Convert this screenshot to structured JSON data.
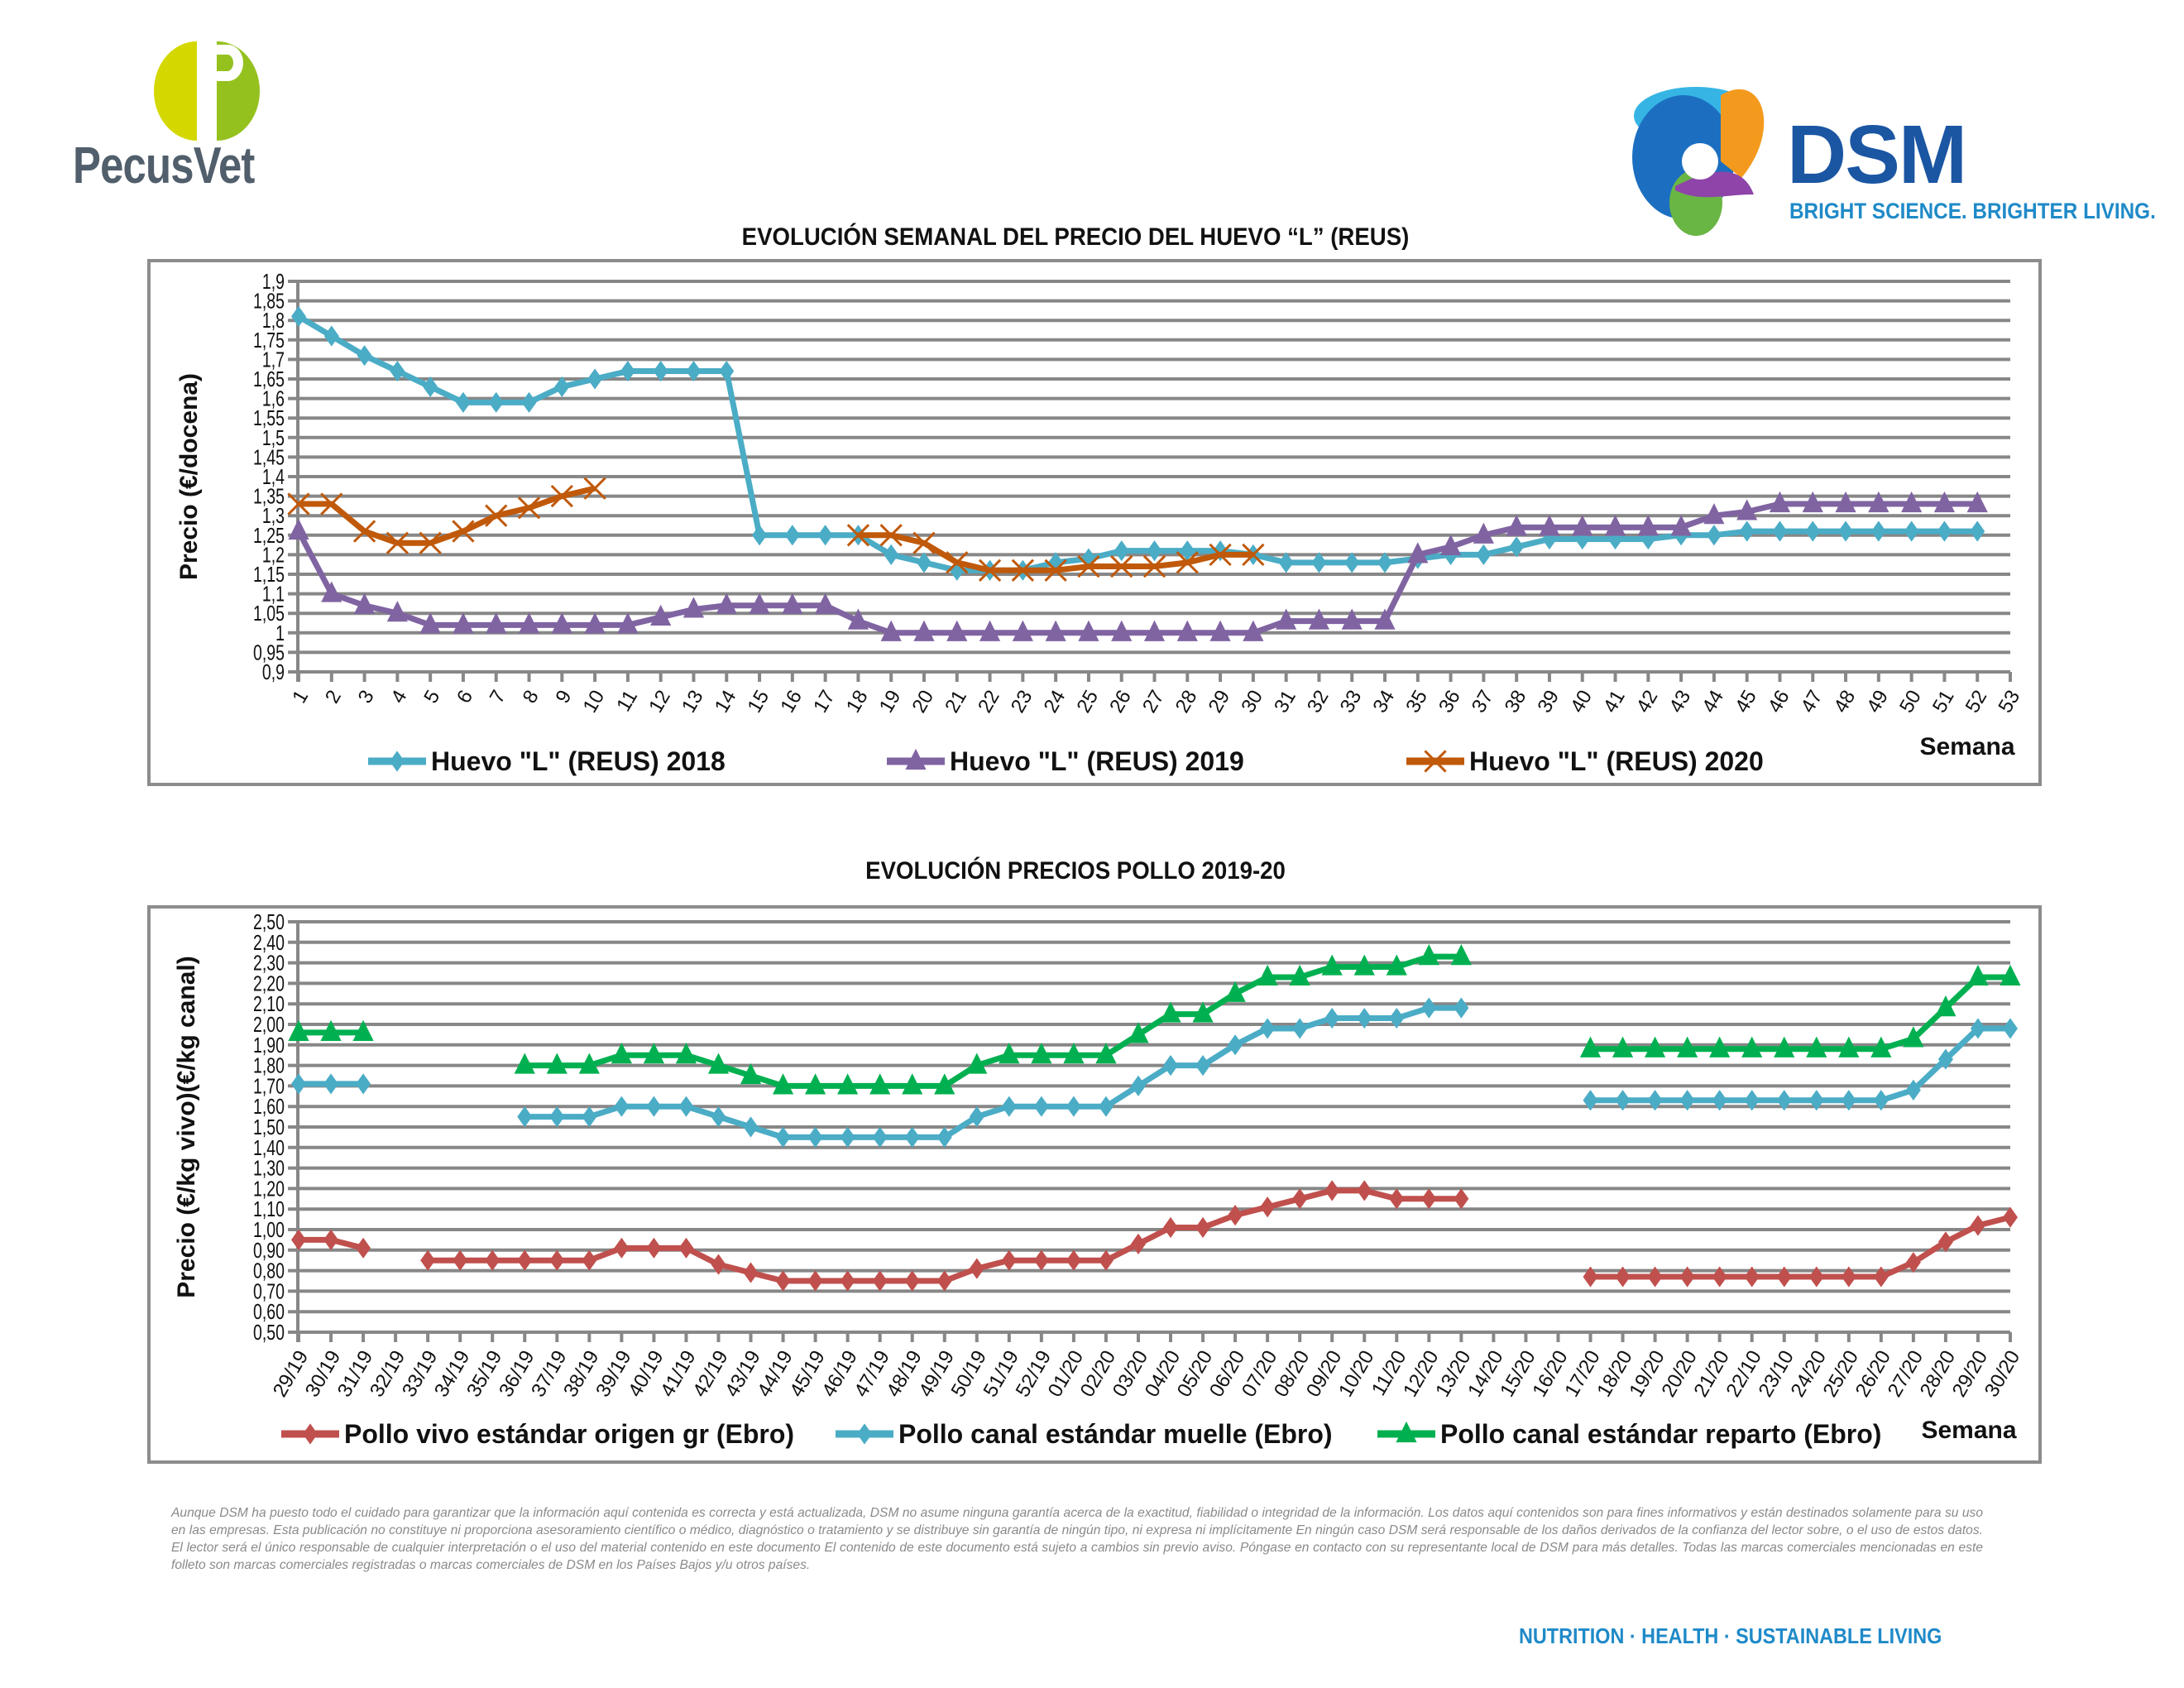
{
  "header": {
    "left_brand": "PecusVet",
    "right_brand": "DSM",
    "right_tagline": "BRIGHT SCIENCE. BRIGHTER LIVING.",
    "brand_colors": {
      "pecus_text": "#515e6b",
      "pecus_left": "#d4d800",
      "pecus_right": "#95c11f",
      "dsm_blue": "#1b56a3",
      "dsm_light": "#1f8ac8"
    }
  },
  "chart_data": [
    {
      "type": "line",
      "title": "EVOLUCIÓN SEMANAL DEL PRECIO DEL HUEVO “L” (REUS)",
      "xlabel": "Semana",
      "ylabel": "Precio (€/docena)",
      "ylim": [
        0.9,
        1.9
      ],
      "ystep": 0.05,
      "yticks": [
        "0,9",
        "0,95",
        "1",
        "1,05",
        "1,1",
        "1,15",
        "1,2",
        "1,25",
        "1,3",
        "1,35",
        "1,4",
        "1,45",
        "1,5",
        "1,55",
        "1,6",
        "1,65",
        "1,7",
        "1,75",
        "1,8",
        "1,85",
        "1,9"
      ],
      "grid": true,
      "legend_position": "bottom",
      "categories": [
        "1",
        "2",
        "3",
        "4",
        "5",
        "6",
        "7",
        "8",
        "9",
        "10",
        "11",
        "12",
        "13",
        "14",
        "15",
        "16",
        "17",
        "18",
        "19",
        "20",
        "21",
        "22",
        "23",
        "24",
        "25",
        "26",
        "27",
        "28",
        "29",
        "30",
        "31",
        "32",
        "33",
        "34",
        "35",
        "36",
        "37",
        "38",
        "39",
        "40",
        "41",
        "42",
        "43",
        "44",
        "45",
        "46",
        "47",
        "48",
        "49",
        "50",
        "51",
        "52",
        "53"
      ],
      "series": [
        {
          "name": "Huevo \"L\" (REUS) 2018",
          "color": "#4bacc6",
          "marker": "diamond",
          "values": [
            1.81,
            1.76,
            1.71,
            1.67,
            1.63,
            1.59,
            1.59,
            1.59,
            1.63,
            1.65,
            1.67,
            1.67,
            1.67,
            1.67,
            1.25,
            1.25,
            1.25,
            1.25,
            1.2,
            1.18,
            1.16,
            1.16,
            1.16,
            1.18,
            1.19,
            1.21,
            1.21,
            1.21,
            1.21,
            1.2,
            1.18,
            1.18,
            1.18,
            1.18,
            1.19,
            1.2,
            1.2,
            1.22,
            1.24,
            1.24,
            1.24,
            1.24,
            1.25,
            1.25,
            1.26,
            1.26,
            1.26,
            1.26,
            1.26,
            1.26,
            1.26,
            1.26,
            null
          ]
        },
        {
          "name": "Huevo \"L\" (REUS) 2019",
          "color": "#8064a2",
          "marker": "triangle",
          "values": [
            1.26,
            1.1,
            1.07,
            1.05,
            1.02,
            1.02,
            1.02,
            1.02,
            1.02,
            1.02,
            1.02,
            1.04,
            1.06,
            1.07,
            1.07,
            1.07,
            1.07,
            1.03,
            1.0,
            1.0,
            1.0,
            1.0,
            1.0,
            1.0,
            1.0,
            1.0,
            1.0,
            1.0,
            1.0,
            1.0,
            1.03,
            1.03,
            1.03,
            1.03,
            1.2,
            1.22,
            1.25,
            1.27,
            1.27,
            1.27,
            1.27,
            1.27,
            1.27,
            1.3,
            1.31,
            1.33,
            1.33,
            1.33,
            1.33,
            1.33,
            1.33,
            1.33,
            null
          ]
        },
        {
          "name": "Huevo \"L\" (REUS) 2020",
          "color": "#c0590a",
          "marker": "x",
          "values": [
            1.33,
            1.33,
            1.26,
            1.23,
            1.23,
            1.26,
            1.3,
            1.32,
            1.35,
            1.37,
            null,
            null,
            null,
            null,
            null,
            null,
            null,
            1.25,
            1.25,
            1.23,
            1.18,
            1.16,
            1.16,
            1.16,
            1.17,
            1.17,
            1.17,
            1.18,
            1.2,
            1.2,
            null,
            null,
            null,
            null,
            null,
            null,
            null,
            null,
            null,
            null,
            null,
            null,
            null,
            null,
            null,
            null,
            null,
            null,
            null,
            null,
            null,
            null,
            null
          ]
        }
      ]
    },
    {
      "type": "line",
      "title": "EVOLUCIÓN PRECIOS POLLO 2019-20",
      "xlabel": "Semana",
      "ylabel": "Precio (€/kg vivo)(€/kg canal)",
      "ylim": [
        0.5,
        2.5
      ],
      "ystep": 0.1,
      "yticks": [
        "0,50",
        "0,60",
        "0,70",
        "0,80",
        "0,90",
        "1,00",
        "1,10",
        "1,20",
        "1,30",
        "1,40",
        "1,50",
        "1,60",
        "1,70",
        "1,80",
        "1,90",
        "2,00",
        "2,10",
        "2,20",
        "2,30",
        "2,40",
        "2,50"
      ],
      "grid": true,
      "legend_position": "bottom",
      "categories": [
        "29/19",
        "30/19",
        "31/19",
        "32/19",
        "33/19",
        "34/19",
        "35/19",
        "36/19",
        "37/19",
        "38/19",
        "39/19",
        "40/19",
        "41/19",
        "42/19",
        "43/19",
        "44/19",
        "45/19",
        "46/19",
        "47/19",
        "48/19",
        "49/19",
        "50/19",
        "51/19",
        "52/19",
        "01/20",
        "02/20",
        "03/20",
        "04/20",
        "05/20",
        "06/20",
        "07/20",
        "08/20",
        "09/20",
        "10/20",
        "11/20",
        "12/20",
        "13/20",
        "14/20",
        "15/20",
        "16/20",
        "17/20",
        "18/20",
        "19/20",
        "20/20",
        "21/20",
        "22/10",
        "23/10",
        "24/20",
        "25/20",
        "26/20",
        "27/20",
        "28/20",
        "29/20",
        "30/20"
      ],
      "series": [
        {
          "name": "Pollo vivo estándar origen gr (Ebro)",
          "color": "#c0504d",
          "marker": "diamond",
          "values": [
            0.95,
            0.95,
            0.91,
            null,
            0.85,
            0.85,
            0.85,
            0.85,
            0.85,
            0.85,
            0.91,
            0.91,
            0.91,
            0.83,
            0.79,
            0.75,
            0.75,
            0.75,
            0.75,
            0.75,
            0.75,
            0.81,
            0.85,
            0.85,
            0.85,
            0.85,
            0.93,
            1.01,
            1.01,
            1.07,
            1.11,
            1.15,
            1.19,
            1.19,
            1.15,
            1.15,
            1.15,
            null,
            null,
            null,
            0.77,
            0.77,
            0.77,
            0.77,
            0.77,
            0.77,
            0.77,
            0.77,
            0.77,
            0.77,
            0.84,
            0.94,
            1.02,
            1.06
          ]
        },
        {
          "name": "Pollo canal estándar muelle (Ebro)",
          "color": "#4bacc6",
          "marker": "diamond",
          "values": [
            1.71,
            1.71,
            1.71,
            null,
            null,
            null,
            null,
            1.55,
            1.55,
            1.55,
            1.6,
            1.6,
            1.6,
            1.55,
            1.5,
            1.45,
            1.45,
            1.45,
            1.45,
            1.45,
            1.45,
            1.55,
            1.6,
            1.6,
            1.6,
            1.6,
            1.7,
            1.8,
            1.8,
            1.9,
            1.98,
            1.98,
            2.03,
            2.03,
            2.03,
            2.08,
            2.08,
            null,
            null,
            null,
            1.63,
            1.63,
            1.63,
            1.63,
            1.63,
            1.63,
            1.63,
            1.63,
            1.63,
            1.63,
            1.68,
            1.83,
            1.98,
            1.98
          ]
        },
        {
          "name": "Pollo canal estándar reparto (Ebro)",
          "color": "#00b050",
          "marker": "triangle",
          "values": [
            1.96,
            1.96,
            1.96,
            null,
            null,
            null,
            null,
            1.8,
            1.8,
            1.8,
            1.85,
            1.85,
            1.85,
            1.8,
            1.75,
            1.7,
            1.7,
            1.7,
            1.7,
            1.7,
            1.7,
            1.8,
            1.85,
            1.85,
            1.85,
            1.85,
            1.95,
            2.05,
            2.05,
            2.15,
            2.23,
            2.23,
            2.28,
            2.28,
            2.28,
            2.33,
            2.33,
            null,
            null,
            null,
            1.88,
            1.88,
            1.88,
            1.88,
            1.88,
            1.88,
            1.88,
            1.88,
            1.88,
            1.88,
            1.93,
            2.08,
            2.23,
            2.23
          ]
        }
      ]
    }
  ],
  "footer": {
    "disclaimer": "Aunque DSM ha puesto todo el cuidado para garantizar que la información aquí contenida es correcta y está actualizada, DSM no asume ninguna garantía acerca de la exactitud, fiabilidad o integridad de la información. Los datos aquí contenidos son para fines informativos y están destinados solamente para su uso en las empresas. Esta publicación no constituye ni proporciona asesoramiento científico o médico, diagnóstico o tratamiento y se distribuye sin garantía de ningún tipo, ni expresa ni implícitamente En ningún caso DSM será responsable de los daños derivados de la confianza del lector sobre, o el uso de estos datos. El lector será el único responsable de cualquier interpretación o el uso del material contenido en este documento El contenido de este documento está sujeto a cambios sin previo aviso. Póngase en contacto con su representante local de DSM para más detalles. Todas las marcas comerciales mencionadas en este folleto son marcas comerciales registradas o marcas comerciales de DSM en los Países Bajos y/u otros países.",
    "tagline": "NUTRITION · HEALTH · SUSTAINABLE LIVING"
  }
}
